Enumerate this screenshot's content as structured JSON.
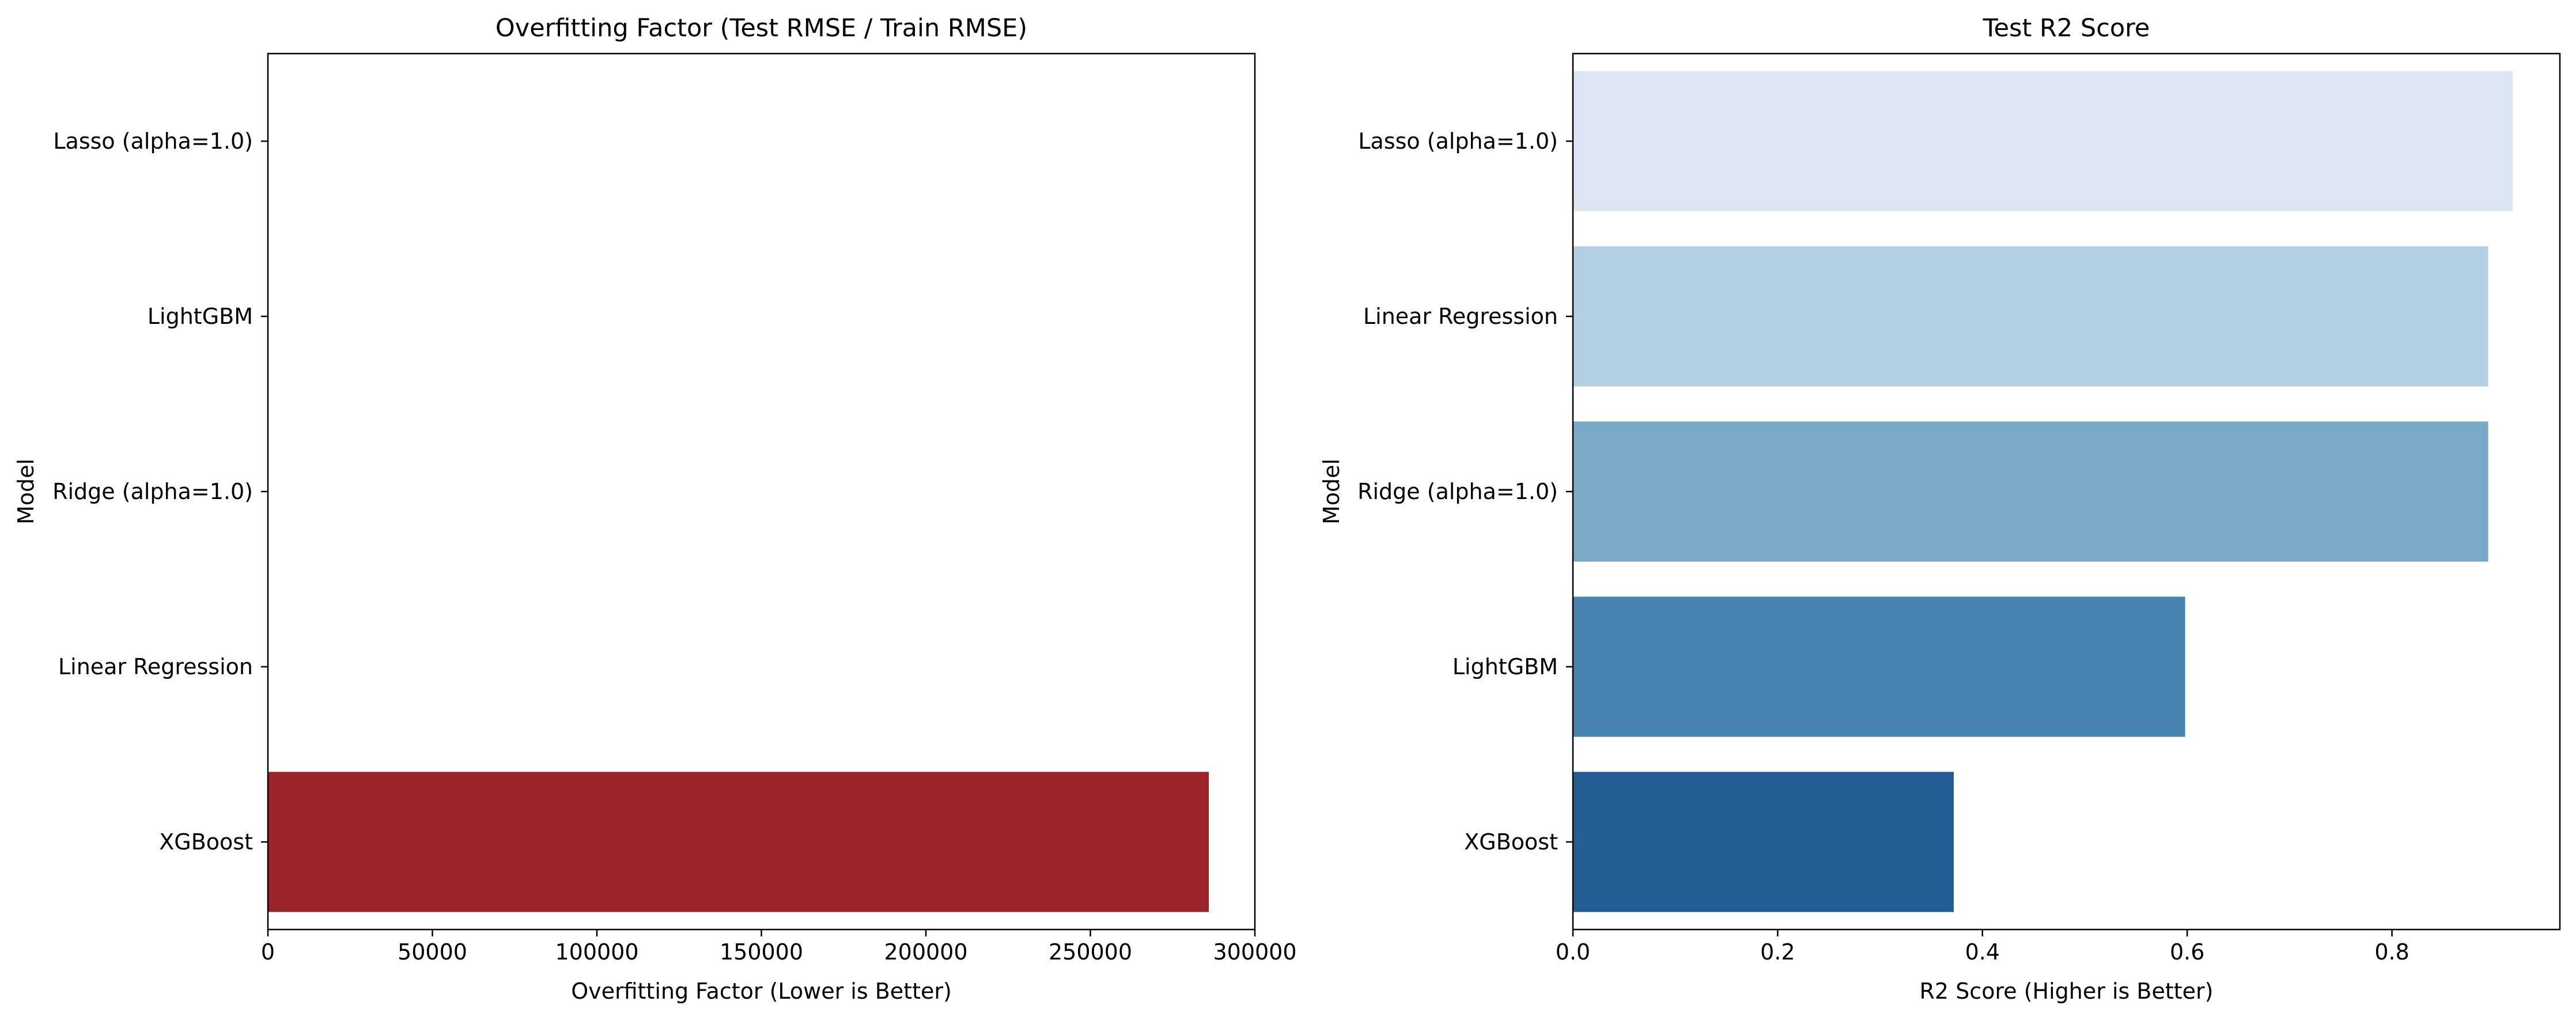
{
  "chart_data": [
    {
      "type": "bar",
      "orientation": "horizontal",
      "title": "Overfitting Factor (Test RMSE / Train RMSE)",
      "xlabel": "Overfitting Factor (Lower is Better)",
      "ylabel": "Model",
      "categories": [
        "Lasso (alpha=1.0)",
        "LightGBM",
        "Ridge (alpha=1.0)",
        "Linear Regression",
        "XGBoost"
      ],
      "values": [
        1.0,
        1.0,
        1.0,
        1.0,
        286000
      ],
      "colors": [
        "#2b7a3a",
        "#2b7a3a",
        "#2b7a3a",
        "#2b7a3a",
        "#9b242b"
      ],
      "xlim": [
        0,
        300000
      ],
      "xticks": [
        0,
        50000,
        100000,
        150000,
        200000,
        250000,
        300000
      ],
      "xtick_labels": [
        "0",
        "50000",
        "100000",
        "150000",
        "200000",
        "250000",
        "300000"
      ],
      "grid": false
    },
    {
      "type": "bar",
      "orientation": "horizontal",
      "title": "Test R2 Score",
      "xlabel": "R2 Score (Higher is Better)",
      "ylabel": "Model",
      "categories": [
        "Lasso (alpha=1.0)",
        "Linear Regression",
        "Ridge (alpha=1.0)",
        "LightGBM",
        "XGBoost"
      ],
      "values": [
        0.918,
        0.894,
        0.894,
        0.598,
        0.372
      ],
      "colors": [
        "#dbe6f2",
        "#b3cfe1",
        "#79aac8",
        "#4884b2",
        "#225d93"
      ],
      "xlim": [
        0,
        0.964
      ],
      "xticks": [
        0.0,
        0.2,
        0.4,
        0.6,
        0.8
      ],
      "xtick_labels": [
        "0.0",
        "0.2",
        "0.4",
        "0.6",
        "0.8"
      ],
      "grid": false
    }
  ]
}
